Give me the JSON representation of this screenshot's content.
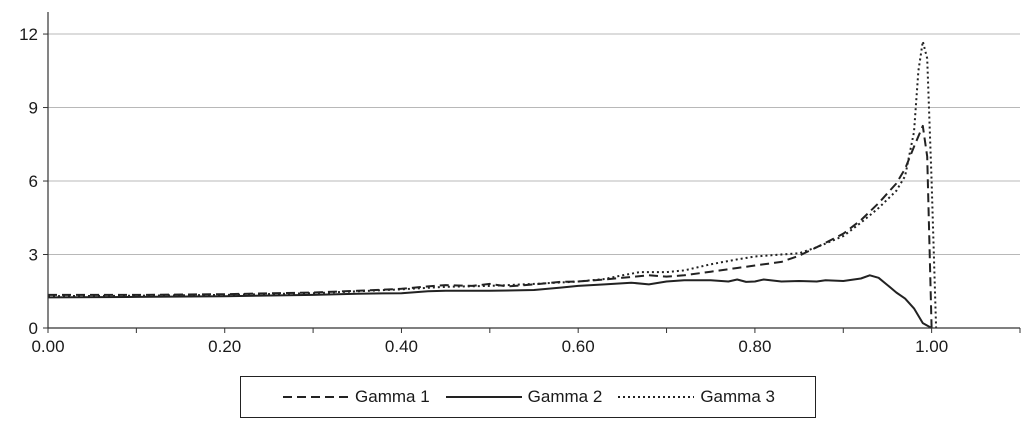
{
  "chart_data": {
    "type": "line",
    "title": "",
    "xlabel": "",
    "ylabel": "",
    "xlim": [
      0,
      1.1
    ],
    "ylim": [
      0,
      12.9
    ],
    "x_ticks": [
      "0.00",
      "0.20",
      "0.40",
      "0.60",
      "0.80",
      "1.00"
    ],
    "x_tick_values": [
      0,
      0.2,
      0.4,
      0.6,
      0.8,
      1.0
    ],
    "y_ticks": [
      "0",
      "3",
      "6",
      "9",
      "12"
    ],
    "y_tick_values": [
      0,
      3,
      6,
      9,
      12
    ],
    "grid": "horizontal",
    "legend_position": "bottom",
    "series": [
      {
        "name": "Gamma 1",
        "style": "dashed",
        "color": "#222222",
        "points": [
          [
            0,
            1.35
          ],
          [
            0.1,
            1.35
          ],
          [
            0.2,
            1.38
          ],
          [
            0.3,
            1.45
          ],
          [
            0.35,
            1.52
          ],
          [
            0.4,
            1.6
          ],
          [
            0.43,
            1.7
          ],
          [
            0.45,
            1.75
          ],
          [
            0.48,
            1.72
          ],
          [
            0.5,
            1.8
          ],
          [
            0.52,
            1.7
          ],
          [
            0.55,
            1.78
          ],
          [
            0.58,
            1.88
          ],
          [
            0.6,
            1.9
          ],
          [
            0.63,
            1.98
          ],
          [
            0.65,
            2.05
          ],
          [
            0.68,
            2.15
          ],
          [
            0.7,
            2.1
          ],
          [
            0.72,
            2.15
          ],
          [
            0.75,
            2.3
          ],
          [
            0.78,
            2.45
          ],
          [
            0.8,
            2.55
          ],
          [
            0.83,
            2.7
          ],
          [
            0.85,
            2.95
          ],
          [
            0.87,
            3.3
          ],
          [
            0.9,
            3.85
          ],
          [
            0.92,
            4.4
          ],
          [
            0.94,
            5.1
          ],
          [
            0.96,
            5.9
          ],
          [
            0.97,
            6.5
          ],
          [
            0.98,
            7.4
          ],
          [
            0.99,
            8.25
          ],
          [
            0.995,
            7.0
          ],
          [
            1.0,
            0
          ]
        ]
      },
      {
        "name": "Gamma 2",
        "style": "solid",
        "color": "#222222",
        "points": [
          [
            0,
            1.25
          ],
          [
            0.1,
            1.27
          ],
          [
            0.2,
            1.3
          ],
          [
            0.3,
            1.35
          ],
          [
            0.35,
            1.4
          ],
          [
            0.4,
            1.42
          ],
          [
            0.43,
            1.5
          ],
          [
            0.45,
            1.52
          ],
          [
            0.5,
            1.52
          ],
          [
            0.55,
            1.55
          ],
          [
            0.58,
            1.65
          ],
          [
            0.6,
            1.72
          ],
          [
            0.63,
            1.78
          ],
          [
            0.66,
            1.85
          ],
          [
            0.68,
            1.78
          ],
          [
            0.7,
            1.9
          ],
          [
            0.72,
            1.95
          ],
          [
            0.75,
            1.95
          ],
          [
            0.77,
            1.9
          ],
          [
            0.78,
            1.98
          ],
          [
            0.79,
            1.88
          ],
          [
            0.8,
            1.9
          ],
          [
            0.81,
            1.98
          ],
          [
            0.83,
            1.9
          ],
          [
            0.85,
            1.92
          ],
          [
            0.87,
            1.9
          ],
          [
            0.88,
            1.95
          ],
          [
            0.9,
            1.92
          ],
          [
            0.92,
            2.02
          ],
          [
            0.93,
            2.15
          ],
          [
            0.94,
            2.05
          ],
          [
            0.95,
            1.75
          ],
          [
            0.96,
            1.45
          ],
          [
            0.97,
            1.2
          ],
          [
            0.98,
            0.8
          ],
          [
            0.99,
            0.2
          ],
          [
            1.0,
            0
          ]
        ]
      },
      {
        "name": "Gamma 3",
        "style": "dotted",
        "color": "#222222",
        "points": [
          [
            0,
            1.3
          ],
          [
            0.1,
            1.32
          ],
          [
            0.2,
            1.35
          ],
          [
            0.3,
            1.42
          ],
          [
            0.35,
            1.5
          ],
          [
            0.4,
            1.58
          ],
          [
            0.45,
            1.68
          ],
          [
            0.5,
            1.72
          ],
          [
            0.55,
            1.8
          ],
          [
            0.6,
            1.9
          ],
          [
            0.63,
            2.0
          ],
          [
            0.65,
            2.15
          ],
          [
            0.67,
            2.28
          ],
          [
            0.7,
            2.28
          ],
          [
            0.72,
            2.35
          ],
          [
            0.75,
            2.6
          ],
          [
            0.78,
            2.8
          ],
          [
            0.8,
            2.92
          ],
          [
            0.83,
            3.0
          ],
          [
            0.85,
            3.05
          ],
          [
            0.87,
            3.3
          ],
          [
            0.9,
            3.75
          ],
          [
            0.92,
            4.3
          ],
          [
            0.94,
            4.9
          ],
          [
            0.96,
            5.6
          ],
          [
            0.97,
            6.2
          ],
          [
            0.98,
            8.0
          ],
          [
            0.985,
            10.5
          ],
          [
            0.99,
            11.7
          ],
          [
            0.995,
            11.0
          ],
          [
            1.0,
            6.0
          ],
          [
            1.005,
            0
          ]
        ]
      }
    ]
  }
}
